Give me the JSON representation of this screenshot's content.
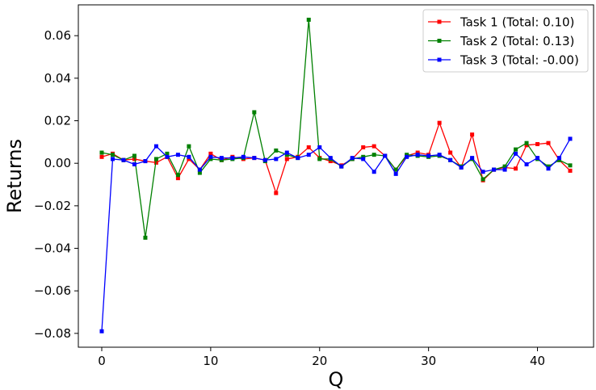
{
  "chart_data": {
    "type": "line",
    "title": "",
    "xlabel": "Q",
    "ylabel": "Returns",
    "xlim": [
      -2.15,
      45.15
    ],
    "ylim": [
      -0.0865,
      0.0745
    ],
    "xticks": [
      0,
      10,
      20,
      30,
      40
    ],
    "yticks": [
      -0.08,
      -0.06,
      -0.04,
      -0.02,
      0.0,
      0.02,
      0.04,
      0.06
    ],
    "ytick_labels": [
      "−0.08",
      "−0.06",
      "−0.04",
      "−0.02",
      "0.00",
      "0.02",
      "0.04",
      "0.06"
    ],
    "grid": false,
    "legend_position": "top-right",
    "x": [
      0,
      1,
      2,
      3,
      4,
      5,
      6,
      7,
      8,
      9,
      10,
      11,
      12,
      13,
      14,
      15,
      16,
      17,
      18,
      19,
      20,
      21,
      22,
      23,
      24,
      25,
      26,
      27,
      28,
      29,
      30,
      31,
      32,
      33,
      34,
      35,
      36,
      37,
      38,
      39,
      40,
      41,
      42,
      43
    ],
    "series": [
      {
        "name": "Task 1 (Total: 0.10)",
        "color": "#ff0000",
        "values": [
          0.003,
          0.0045,
          0.0015,
          0.002,
          0.001,
          0.0003,
          0.003,
          -0.007,
          0.002,
          -0.003,
          0.0045,
          0.0015,
          0.003,
          0.002,
          0.0025,
          0.0015,
          -0.014,
          0.002,
          0.003,
          0.0075,
          0.0025,
          0.001,
          -0.001,
          0.002,
          0.0075,
          0.008,
          0.0035,
          -0.003,
          0.0035,
          0.005,
          0.004,
          0.019,
          0.005,
          -0.002,
          0.0135,
          -0.008,
          -0.003,
          -0.002,
          -0.0025,
          0.0085,
          0.009,
          0.0095,
          0.0015,
          -0.0035
        ]
      },
      {
        "name": "Task 2 (Total: 0.13)",
        "color": "#008000",
        "values": [
          0.005,
          0.004,
          0.0015,
          0.0035,
          -0.035,
          0.002,
          0.0045,
          -0.0055,
          0.008,
          -0.0045,
          0.002,
          0.0015,
          0.002,
          0.0025,
          0.024,
          0.001,
          0.006,
          0.004,
          0.0025,
          0.0675,
          0.002,
          0.002,
          -0.0015,
          0.002,
          0.003,
          0.004,
          0.0035,
          -0.003,
          0.004,
          0.0035,
          0.003,
          0.0035,
          0.0015,
          -0.0015,
          0.002,
          -0.0075,
          -0.003,
          -0.0015,
          0.0065,
          0.0095,
          0.002,
          -0.0015,
          0.0015,
          -0.001
        ]
      },
      {
        "name": "Task 3 (Total: -0.00)",
        "color": "#0000ff",
        "values": [
          -0.079,
          0.002,
          0.0015,
          -0.0005,
          0.001,
          0.008,
          0.003,
          0.004,
          0.003,
          -0.003,
          0.003,
          0.0025,
          0.0025,
          0.003,
          0.0025,
          0.0015,
          0.002,
          0.005,
          0.0025,
          0.004,
          0.0075,
          0.0025,
          -0.0015,
          0.0025,
          0.002,
          -0.004,
          0.0035,
          -0.005,
          0.003,
          0.004,
          0.0035,
          0.004,
          0.0015,
          -0.002,
          0.0025,
          -0.004,
          -0.003,
          -0.003,
          0.0045,
          -0.0005,
          0.0025,
          -0.0025,
          0.0025,
          0.0115
        ]
      }
    ]
  }
}
